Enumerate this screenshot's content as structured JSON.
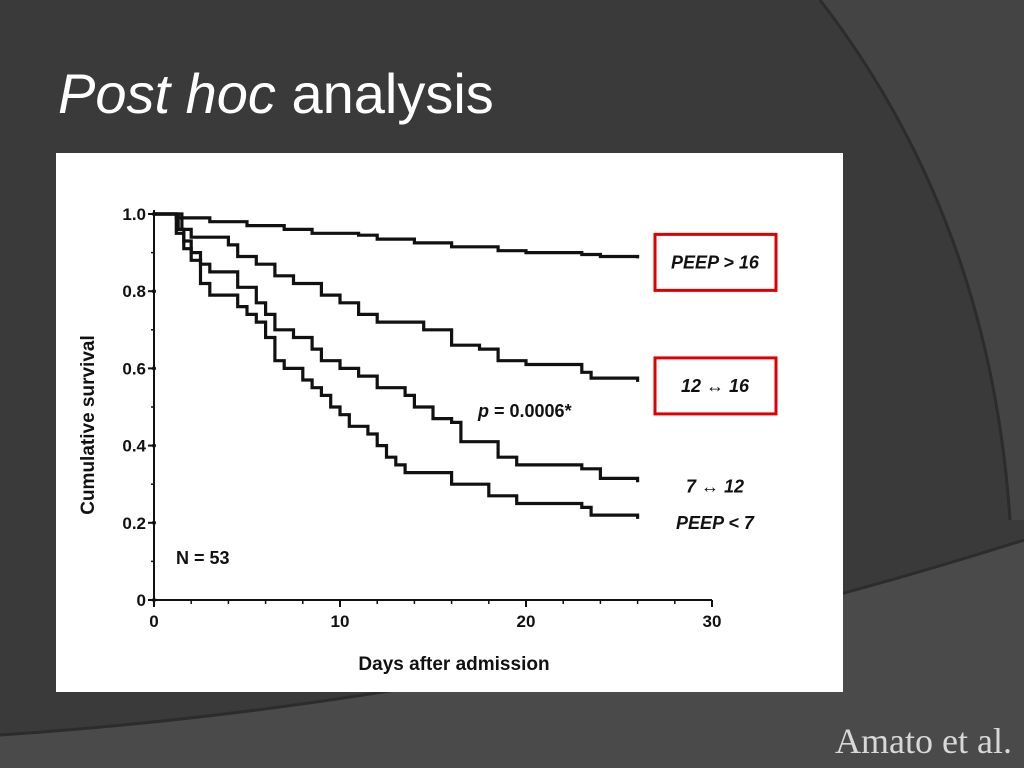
{
  "slide": {
    "title_italic": "Post hoc",
    "title_rest": "analysis",
    "citation": "Amato et al."
  },
  "chart_data": {
    "type": "line",
    "subtype": "step",
    "xlabel": "Days after admission",
    "ylabel": "Cumulative survival",
    "xlim": [
      0,
      30
    ],
    "ylim": [
      0,
      1.0
    ],
    "x_ticks": [
      "0",
      "10",
      "20",
      "30"
    ],
    "y_ticks": [
      "0",
      "0.2",
      "0.4",
      "0.6",
      "0.8",
      "1.0"
    ],
    "annotations": {
      "n_label": "N = 53",
      "p_prefix": "p",
      "p_value": "= 0.0006*"
    },
    "series": [
      {
        "name": "PEEP > 16",
        "highlighted": true,
        "points": [
          [
            0,
            1.0
          ],
          [
            1,
            1.0
          ],
          [
            1.2,
            0.99
          ],
          [
            3,
            0.98
          ],
          [
            5,
            0.97
          ],
          [
            7,
            0.96
          ],
          [
            8.5,
            0.95
          ],
          [
            11,
            0.945
          ],
          [
            12,
            0.935
          ],
          [
            14,
            0.925
          ],
          [
            16,
            0.915
          ],
          [
            18.5,
            0.905
          ],
          [
            20,
            0.9
          ],
          [
            23,
            0.895
          ],
          [
            24,
            0.89
          ],
          [
            26,
            0.885
          ]
        ]
      },
      {
        "name": "12 ↔ 16",
        "highlighted": true,
        "points": [
          [
            0,
            1.0
          ],
          [
            1,
            1.0
          ],
          [
            1.5,
            0.96
          ],
          [
            2,
            0.94
          ],
          [
            4,
            0.92
          ],
          [
            4.5,
            0.89
          ],
          [
            5.5,
            0.87
          ],
          [
            6.5,
            0.84
          ],
          [
            7.5,
            0.82
          ],
          [
            9,
            0.79
          ],
          [
            10,
            0.77
          ],
          [
            11,
            0.74
          ],
          [
            12,
            0.72
          ],
          [
            14.5,
            0.7
          ],
          [
            16,
            0.66
          ],
          [
            17.5,
            0.65
          ],
          [
            18.5,
            0.62
          ],
          [
            20,
            0.61
          ],
          [
            23,
            0.59
          ],
          [
            23.5,
            0.575
          ],
          [
            26,
            0.565
          ]
        ]
      },
      {
        "name": "7 ↔ 12",
        "highlighted": false,
        "points": [
          [
            0,
            1.0
          ],
          [
            1,
            1.0
          ],
          [
            1.3,
            0.96
          ],
          [
            1.6,
            0.93
          ],
          [
            2,
            0.9
          ],
          [
            2.5,
            0.87
          ],
          [
            3,
            0.85
          ],
          [
            4.5,
            0.81
          ],
          [
            5.5,
            0.77
          ],
          [
            6,
            0.74
          ],
          [
            6.5,
            0.7
          ],
          [
            7.5,
            0.68
          ],
          [
            8.5,
            0.65
          ],
          [
            9,
            0.62
          ],
          [
            10,
            0.6
          ],
          [
            11,
            0.58
          ],
          [
            12,
            0.55
          ],
          [
            13.5,
            0.53
          ],
          [
            14,
            0.5
          ],
          [
            15,
            0.47
          ],
          [
            16,
            0.46
          ],
          [
            16.5,
            0.41
          ],
          [
            18.5,
            0.37
          ],
          [
            19.5,
            0.35
          ],
          [
            23,
            0.34
          ],
          [
            24,
            0.315
          ],
          [
            26,
            0.305
          ]
        ]
      },
      {
        "name": "PEEP < 7",
        "highlighted": false,
        "points": [
          [
            0,
            1.0
          ],
          [
            1,
            1.0
          ],
          [
            1.2,
            0.95
          ],
          [
            1.6,
            0.91
          ],
          [
            2,
            0.88
          ],
          [
            2.5,
            0.82
          ],
          [
            3,
            0.79
          ],
          [
            4.5,
            0.76
          ],
          [
            5,
            0.74
          ],
          [
            5.5,
            0.72
          ],
          [
            6,
            0.68
          ],
          [
            6.5,
            0.62
          ],
          [
            7,
            0.6
          ],
          [
            8,
            0.57
          ],
          [
            8.5,
            0.55
          ],
          [
            9,
            0.53
          ],
          [
            9.5,
            0.5
          ],
          [
            10,
            0.48
          ],
          [
            10.5,
            0.45
          ],
          [
            11.5,
            0.43
          ],
          [
            12,
            0.4
          ],
          [
            12.5,
            0.37
          ],
          [
            13,
            0.35
          ],
          [
            13.5,
            0.33
          ],
          [
            16,
            0.3
          ],
          [
            18,
            0.27
          ],
          [
            19.5,
            0.25
          ],
          [
            23,
            0.24
          ],
          [
            23.5,
            0.22
          ],
          [
            26,
            0.21
          ]
        ]
      }
    ]
  }
}
